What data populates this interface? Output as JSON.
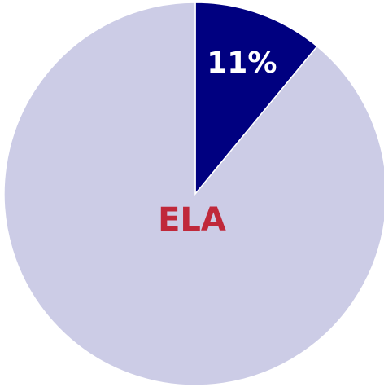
{
  "chart_data": {
    "type": "pie",
    "center_label": "ELA",
    "values": [
      11,
      89
    ],
    "value_labels": [
      "11%",
      null
    ],
    "colors": [
      "#000080",
      "#cccce6"
    ],
    "label_color": "#ffffff",
    "center_label_color": "#c0283a"
  }
}
